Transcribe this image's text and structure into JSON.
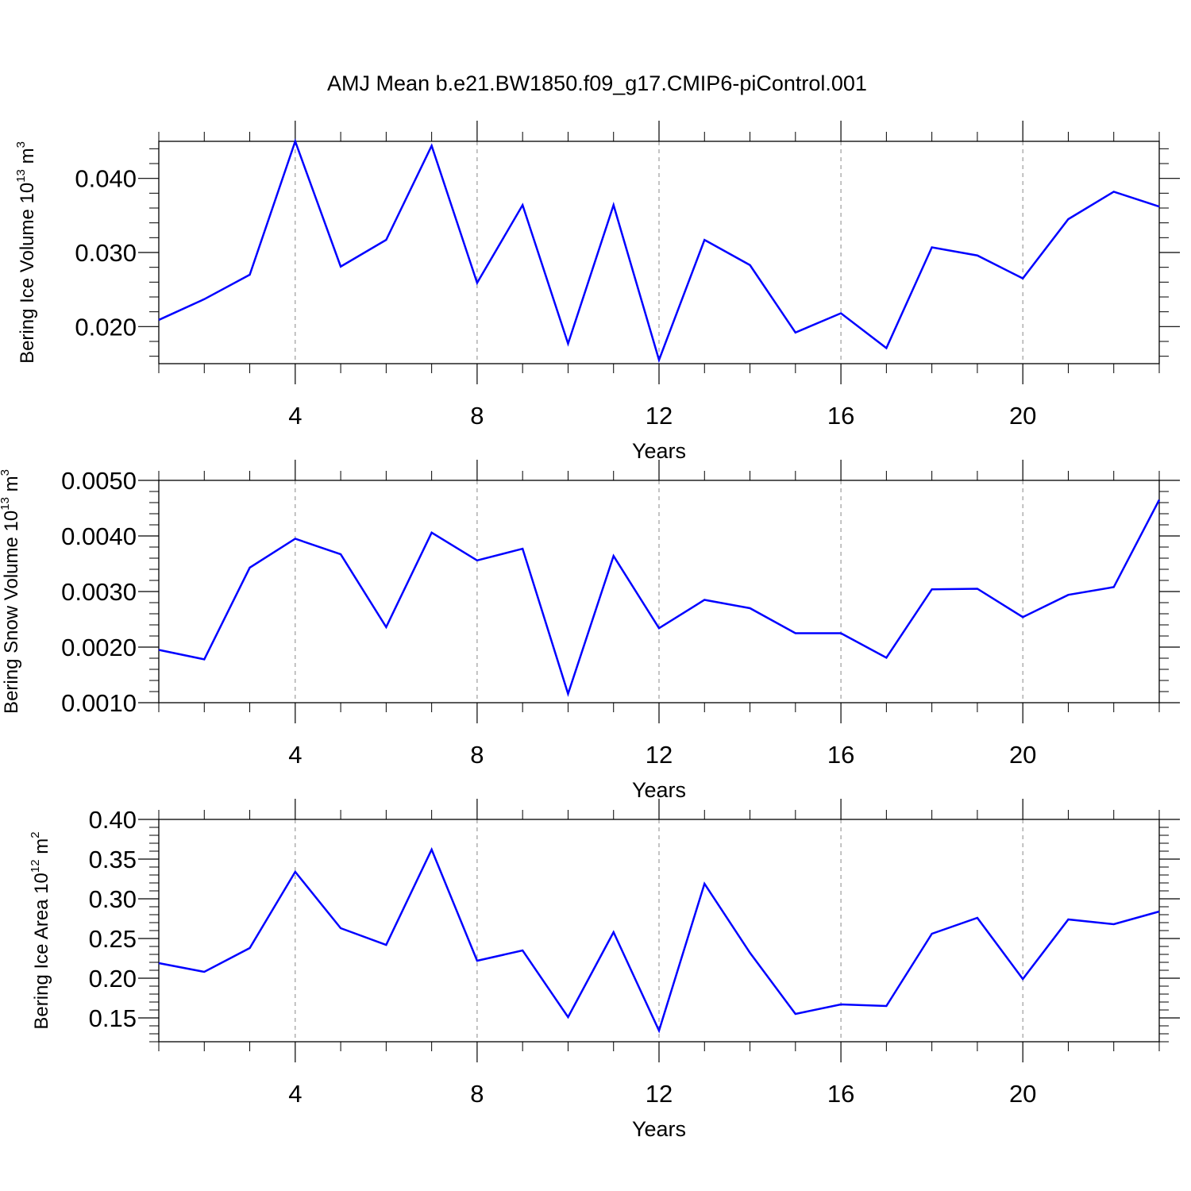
{
  "figure": {
    "title": "AMJ Mean b.e21.BW1850.f09_g17.CMIP6-piControl.001"
  },
  "colors": {
    "line": "#0000ff",
    "axis": "#000000",
    "grid": "#888888",
    "background": "#ffffff"
  },
  "chart_data": [
    {
      "type": "line",
      "title": "",
      "xlabel": "Years",
      "ylabel": "Bering Ice Volume 10",
      "ylabel_exponent": "13",
      "ylabel_unit": "m",
      "ylabel_unit_exponent": "3",
      "x": [
        1,
        2,
        3,
        4,
        5,
        6,
        7,
        8,
        9,
        10,
        11,
        12,
        13,
        14,
        15,
        16,
        17,
        18,
        19,
        20,
        21,
        22,
        23
      ],
      "series": [
        {
          "values": [
            0.0209,
            0.0237,
            0.027,
            0.045,
            0.0281,
            0.0317,
            0.0444,
            0.0259,
            0.0364,
            0.0177,
            0.0364,
            0.0155,
            0.0317,
            0.0283,
            0.0192,
            0.0218,
            0.0171,
            0.0307,
            0.0296,
            0.0265,
            0.0345,
            0.0382,
            0.0362
          ]
        }
      ],
      "xlim": [
        1,
        23
      ],
      "ylim": [
        0.015,
        0.045
      ],
      "xticks": [
        4,
        8,
        12,
        16,
        20
      ],
      "xtick_labels": [
        "4",
        "8",
        "12",
        "16",
        "20"
      ],
      "yticks": [
        0.02,
        0.03,
        0.04
      ],
      "ytick_labels": [
        "0.020",
        "0.030",
        "0.040"
      ],
      "y_minor_step": 0.002,
      "grid": "vertical dashed at major x ticks"
    },
    {
      "type": "line",
      "title": "",
      "xlabel": "Years",
      "ylabel": "Bering Snow Volume 10",
      "ylabel_exponent": "13",
      "ylabel_unit": "m",
      "ylabel_unit_exponent": "3",
      "x": [
        1,
        2,
        3,
        4,
        5,
        6,
        7,
        8,
        9,
        10,
        11,
        12,
        13,
        14,
        15,
        16,
        17,
        18,
        19,
        20,
        21,
        22,
        23
      ],
      "series": [
        {
          "values": [
            0.00195,
            0.00178,
            0.00343,
            0.00395,
            0.00367,
            0.00236,
            0.00406,
            0.00356,
            0.00377,
            0.00116,
            0.00364,
            0.00234,
            0.00285,
            0.0027,
            0.00225,
            0.00225,
            0.00181,
            0.00304,
            0.00305,
            0.00254,
            0.00294,
            0.00308,
            0.00465
          ]
        }
      ],
      "xlim": [
        1,
        23
      ],
      "ylim": [
        0.001,
        0.005
      ],
      "xticks": [
        4,
        8,
        12,
        16,
        20
      ],
      "xtick_labels": [
        "4",
        "8",
        "12",
        "16",
        "20"
      ],
      "yticks": [
        0.001,
        0.002,
        0.003,
        0.004,
        0.005
      ],
      "ytick_labels": [
        "0.0010",
        "0.0020",
        "0.0030",
        "0.0040",
        "0.0050"
      ],
      "y_minor_step": 0.0002,
      "grid": "vertical dashed at major x ticks"
    },
    {
      "type": "line",
      "title": "",
      "xlabel": "Years",
      "ylabel": "Bering Ice Area 10",
      "ylabel_exponent": "12",
      "ylabel_unit": "m",
      "ylabel_unit_exponent": "2",
      "x": [
        1,
        2,
        3,
        4,
        5,
        6,
        7,
        8,
        9,
        10,
        11,
        12,
        13,
        14,
        15,
        16,
        17,
        18,
        19,
        20,
        21,
        22,
        23
      ],
      "series": [
        {
          "values": [
            0.219,
            0.208,
            0.238,
            0.334,
            0.263,
            0.242,
            0.362,
            0.222,
            0.235,
            0.151,
            0.258,
            0.134,
            0.319,
            0.232,
            0.155,
            0.167,
            0.165,
            0.256,
            0.276,
            0.199,
            0.274,
            0.268,
            0.284
          ]
        }
      ],
      "xlim": [
        1,
        23
      ],
      "ylim": [
        0.12,
        0.4
      ],
      "xticks": [
        4,
        8,
        12,
        16,
        20
      ],
      "xtick_labels": [
        "4",
        "8",
        "12",
        "16",
        "20"
      ],
      "yticks": [
        0.15,
        0.2,
        0.25,
        0.3,
        0.35,
        0.4
      ],
      "ytick_labels": [
        "0.15",
        "0.20",
        "0.25",
        "0.30",
        "0.35",
        "0.40"
      ],
      "y_minor_step": 0.01,
      "grid": "vertical dashed at major x ticks"
    }
  ]
}
